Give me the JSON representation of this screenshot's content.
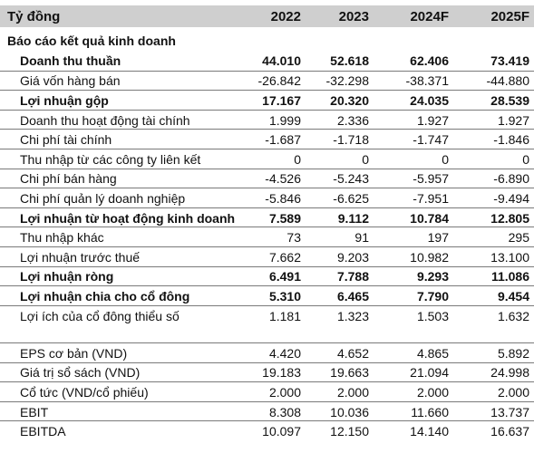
{
  "header": {
    "label": "Tỷ đồng",
    "years": [
      "2022",
      "2023",
      "2024F",
      "2025F"
    ]
  },
  "section_title": "Báo cáo kết quả kinh doanh",
  "rows": [
    {
      "label": "Doanh thu thuần",
      "bold": true,
      "values": [
        "44.010",
        "52.618",
        "62.406",
        "73.419"
      ]
    },
    {
      "label": "Giá vốn hàng bán",
      "bold": false,
      "values": [
        "-26.842",
        "-32.298",
        "-38.371",
        "-44.880"
      ]
    },
    {
      "label": "Lợi nhuận gộp",
      "bold": true,
      "values": [
        "17.167",
        "20.320",
        "24.035",
        "28.539"
      ]
    },
    {
      "label": "Doanh thu hoạt động tài chính",
      "bold": false,
      "values": [
        "1.999",
        "2.336",
        "1.927",
        "1.927"
      ]
    },
    {
      "label": "Chi phí tài chính",
      "bold": false,
      "values": [
        "-1.687",
        "-1.718",
        "-1.747",
        "-1.846"
      ]
    },
    {
      "label": "Thu nhập từ các công ty liên kết",
      "bold": false,
      "values": [
        "0",
        "0",
        "0",
        "0"
      ]
    },
    {
      "label": "Chi phí bán hàng",
      "bold": false,
      "values": [
        "-4.526",
        "-5.243",
        "-5.957",
        "-6.890"
      ]
    },
    {
      "label": "Chi phí quản lý doanh nghiệp",
      "bold": false,
      "values": [
        "-5.846",
        "-6.625",
        "-7.951",
        "-9.494"
      ]
    },
    {
      "label": "Lợi nhuận từ hoạt động kinh doanh",
      "bold": true,
      "values": [
        "7.589",
        "9.112",
        "10.784",
        "12.805"
      ]
    },
    {
      "label": "Thu nhập khác",
      "bold": false,
      "values": [
        "73",
        "91",
        "197",
        "295"
      ]
    },
    {
      "label": "Lợi nhuận trước thuế",
      "bold": false,
      "values": [
        "7.662",
        "9.203",
        "10.982",
        "13.100"
      ]
    },
    {
      "label": "Lợi nhuận ròng",
      "bold": true,
      "values": [
        "6.491",
        "7.788",
        "9.293",
        "11.086"
      ]
    },
    {
      "label": "Lợi nhuận chia cho cổ đông",
      "bold": true,
      "values": [
        "5.310",
        "6.465",
        "7.790",
        "9.454"
      ]
    },
    {
      "label": "Lợi ích của cổ đông thiểu số",
      "bold": false,
      "values": [
        "1.181",
        "1.323",
        "1.503",
        "1.632"
      ]
    }
  ],
  "metrics": [
    {
      "label": "EPS cơ bản (VND)",
      "values": [
        "4.420",
        "4.652",
        "4.865",
        "5.892"
      ]
    },
    {
      "label": "Giá trị sổ sách (VND)",
      "values": [
        "19.183",
        "19.663",
        "21.094",
        "24.998"
      ]
    },
    {
      "label": "Cổ tức (VND/cổ phiếu)",
      "values": [
        "2.000",
        "2.000",
        "2.000",
        "2.000"
      ]
    },
    {
      "label": "EBIT",
      "values": [
        "8.308",
        "10.036",
        "11.660",
        "13.737"
      ]
    },
    {
      "label": "EBITDA",
      "values": [
        "10.097",
        "12.150",
        "14.140",
        "16.637"
      ]
    }
  ]
}
